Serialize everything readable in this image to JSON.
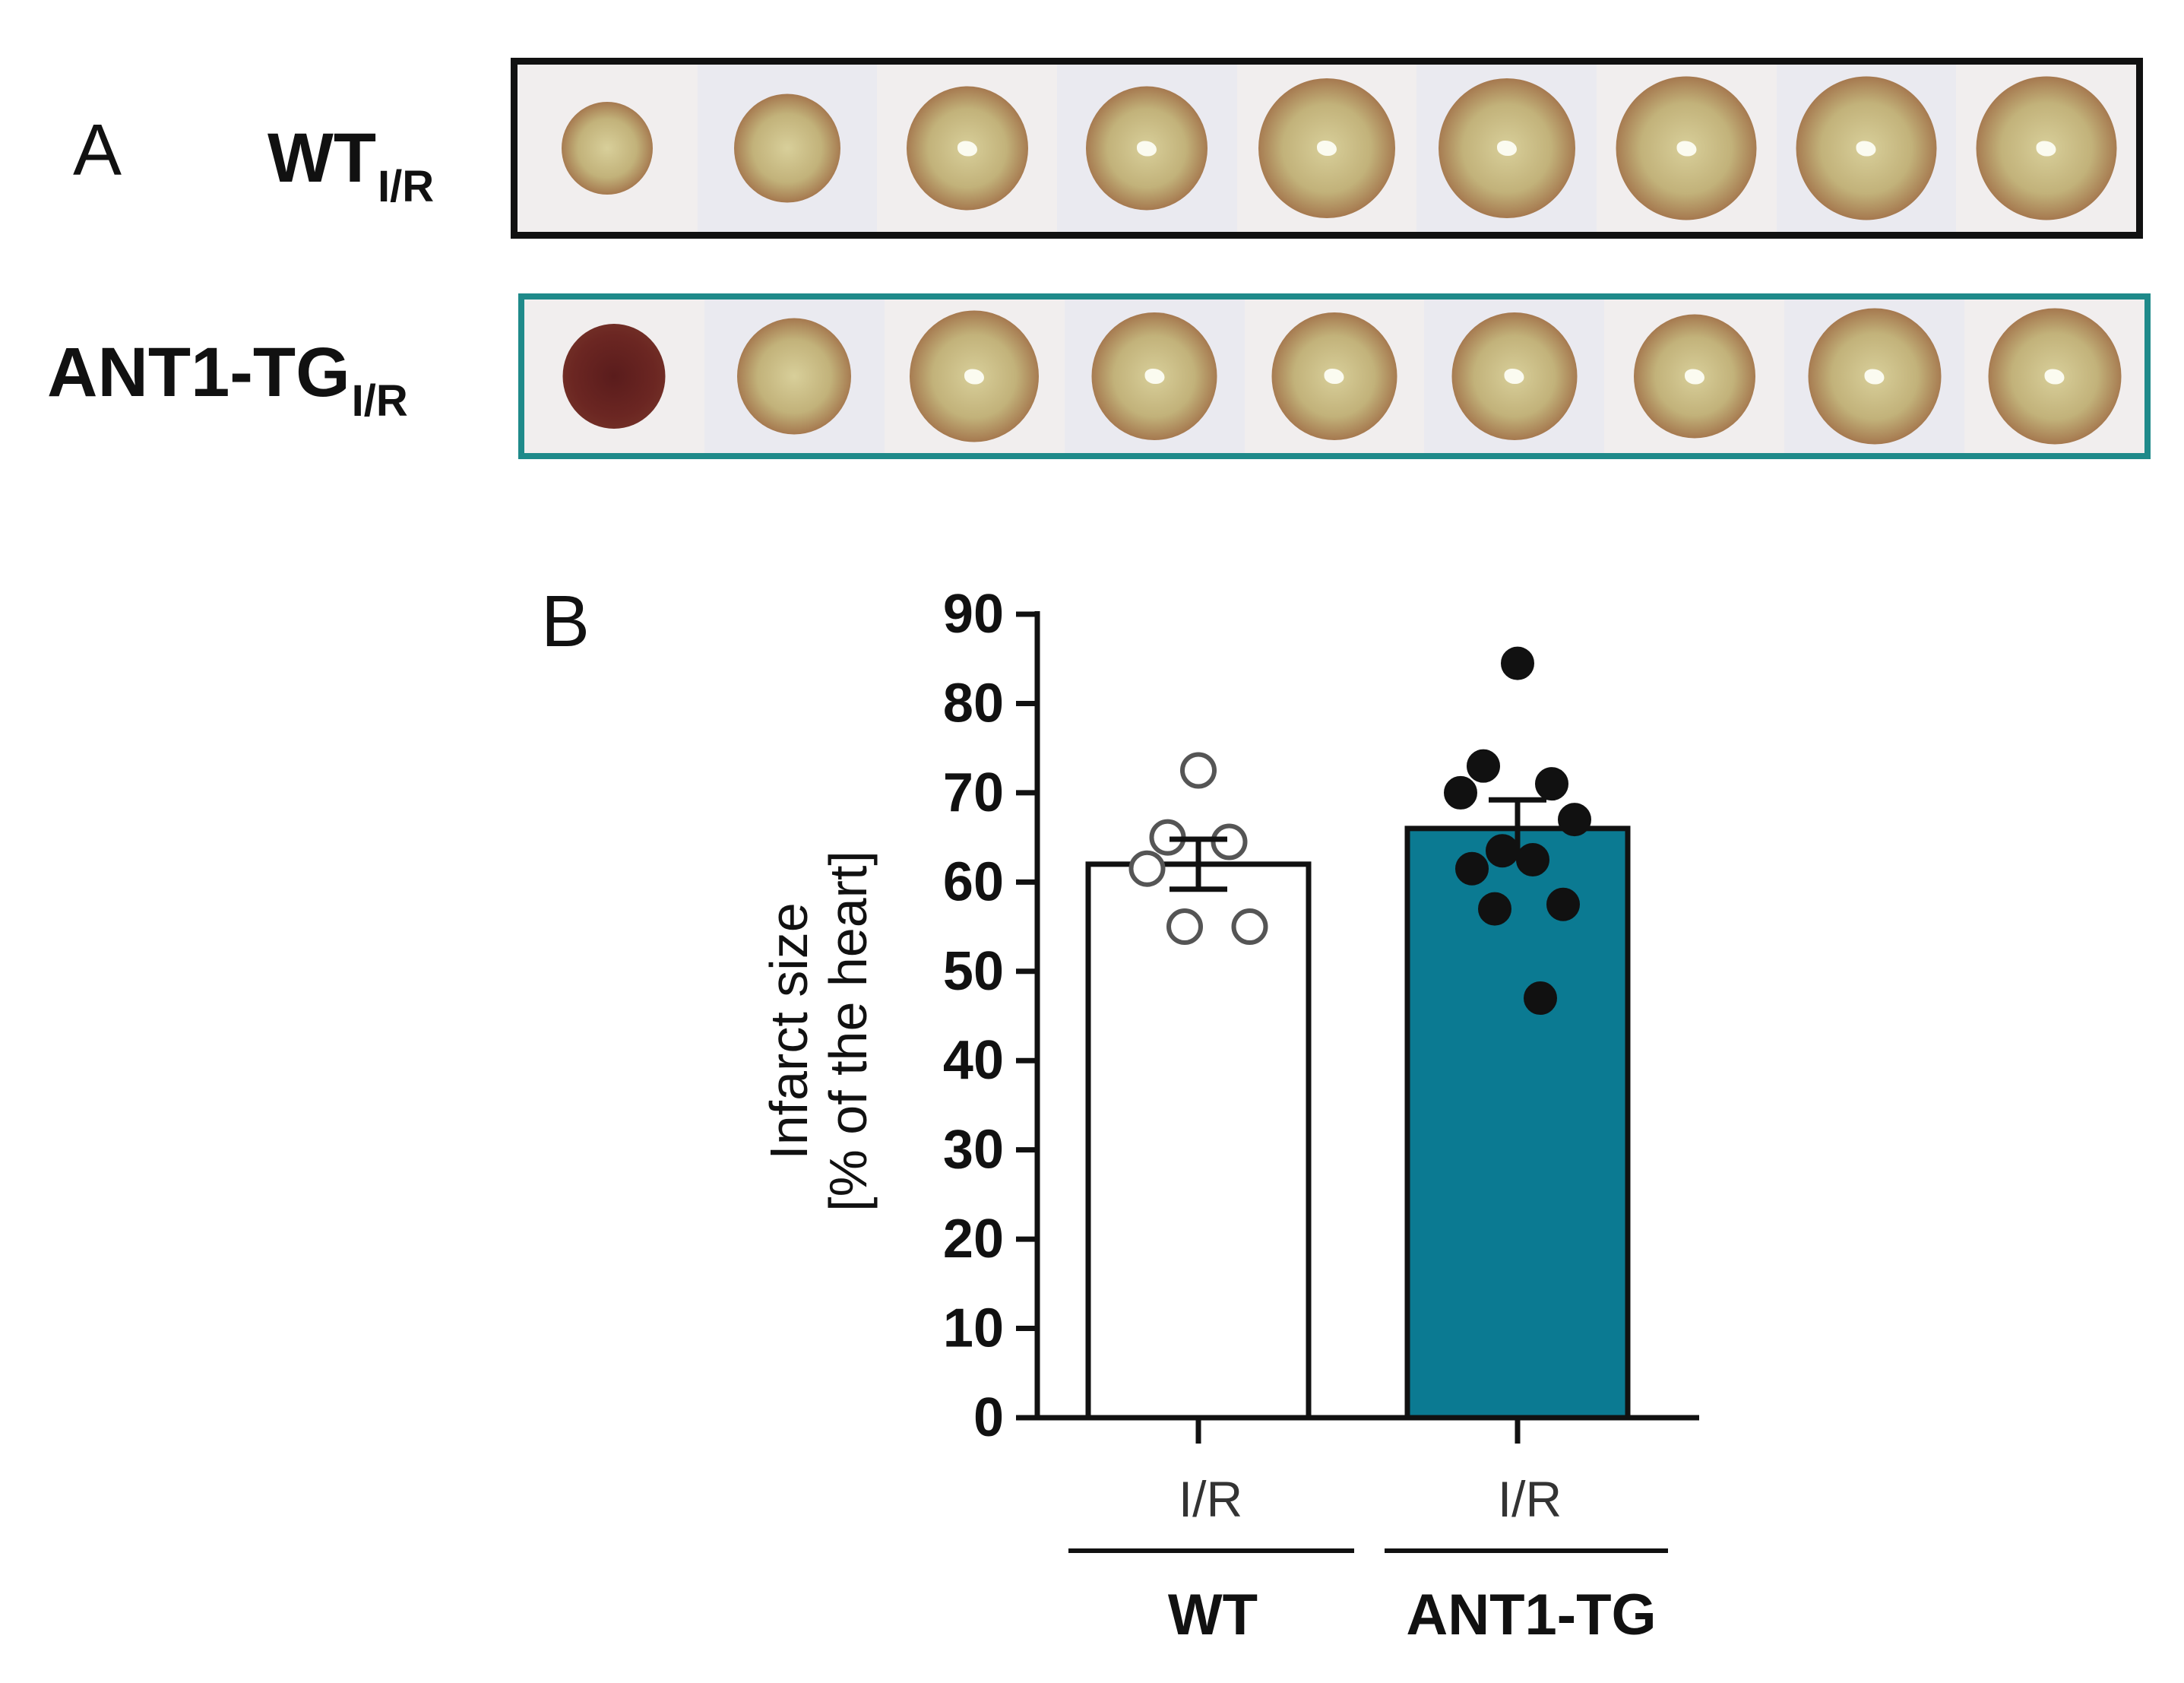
{
  "panel_a": {
    "letter": "A",
    "rows": [
      {
        "label": "WT",
        "subscript": "I/R",
        "frame_color": "#111111",
        "slices": 9
      },
      {
        "label": "ANT1-TG",
        "subscript": "I/R",
        "frame_color": "#1f8a8a",
        "slices": 9
      }
    ]
  },
  "panel_b": {
    "letter": "B"
  },
  "chart_data": {
    "type": "bar",
    "categories": [
      "WT",
      "ANT1-TG"
    ],
    "condition_labels": [
      "I/R",
      "I/R"
    ],
    "values": [
      62,
      66
    ],
    "error_sem": [
      2.8,
      3.2
    ],
    "bar_colors": [
      "#ffffff",
      "#0b7a92"
    ],
    "points": [
      [
        72.5,
        65,
        64.5,
        61.5,
        55,
        55
      ],
      [
        84.5,
        73,
        71,
        70,
        67,
        63.5,
        62.5,
        61.5,
        57.5,
        57,
        47
      ]
    ],
    "point_style": [
      "open",
      "filled"
    ],
    "ylabel_line1": "Infarct size",
    "ylabel_line2": "[% of the heart]",
    "ylim": [
      0,
      90
    ],
    "yticks": [
      "0",
      "10",
      "20",
      "30",
      "40",
      "50",
      "60",
      "70",
      "80",
      "90"
    ]
  }
}
